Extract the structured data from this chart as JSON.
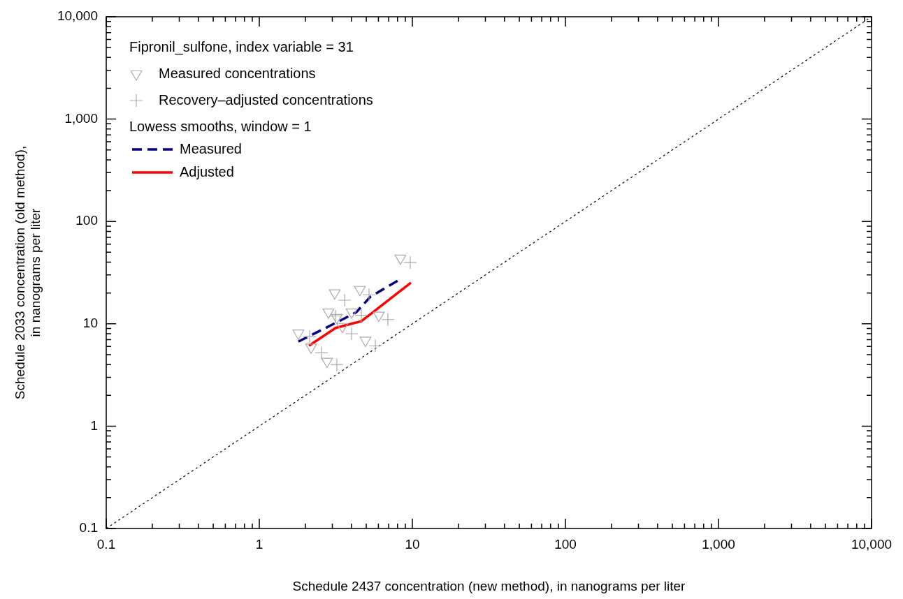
{
  "chart_data": {
    "type": "scatter",
    "xlabel": "Schedule 2437 concentration (new method), in nanograms per liter",
    "ylabel": "Schedule 2033 concentration (old method),\nin nanograms per liter",
    "log": "xy",
    "grid": false,
    "legend": "top left",
    "legend_title": "Fipronil_sulfone, index variable = 31",
    "annotations": [
      "Lowess smooths, window = 1"
    ],
    "xlim": [
      0.1,
      10000
    ],
    "ylim": [
      0.1,
      10000
    ],
    "xticks": [
      0.1,
      1,
      10,
      100,
      {
        "value": 1000,
        "label": "1,000"
      },
      {
        "value": 10000,
        "label": "10,000"
      }
    ],
    "yticks": [
      0.1,
      1,
      10,
      100,
      {
        "value": 1000,
        "label": "1,000"
      },
      {
        "value": 10000,
        "label": "10,000"
      }
    ],
    "series": [
      {
        "name": "Measured concentrations",
        "type": "scatter",
        "marker": "triangle",
        "color": "#aaaaaa",
        "x": [
          1.8,
          2.18,
          2.77,
          3.11,
          2.83,
          3.21,
          3.49,
          4.01,
          4.54,
          4.94,
          6.04,
          8.36
        ],
        "values": [
          8.1,
          5.9,
          4.3,
          20,
          13,
          11.5,
          9.4,
          13,
          21.6,
          6.9,
          12.1,
          43.7
        ]
      },
      {
        "name": "Recovery–adjusted concentrations",
        "type": "scatter",
        "marker": "cross",
        "color": "#aaaaaa",
        "x": [
          2.13,
          2.55,
          3.21,
          3.61,
          3.15,
          4.01,
          4.64,
          5.21,
          5.73,
          6.92,
          9.69
        ],
        "values": [
          7.5,
          5.2,
          4.0,
          17,
          11.9,
          8.0,
          12.1,
          19.2,
          6.1,
          11,
          39.6
        ]
      },
      {
        "name": "Measured",
        "type": "line",
        "marker": "none",
        "line_style": "dashed",
        "color": "#000080",
        "x": [
          1.8,
          3.32,
          4.31,
          5.32,
          8.36
        ],
        "values": [
          6.7,
          10.6,
          13,
          18.4,
          27.3
        ]
      },
      {
        "name": "Adjusted",
        "type": "line",
        "marker": "none",
        "line_style": "solid",
        "color": "#ff0000",
        "x": [
          2.11,
          3.15,
          4.64,
          5.21,
          9.79
        ],
        "values": [
          6.1,
          9.1,
          10.6,
          12.1,
          25.2
        ]
      },
      {
        "type": "line",
        "marker": "none",
        "line_style": "dotted",
        "color": "#000000",
        "x": [
          0.1,
          10000
        ],
        "values": [
          0.1,
          10000
        ]
      }
    ]
  }
}
